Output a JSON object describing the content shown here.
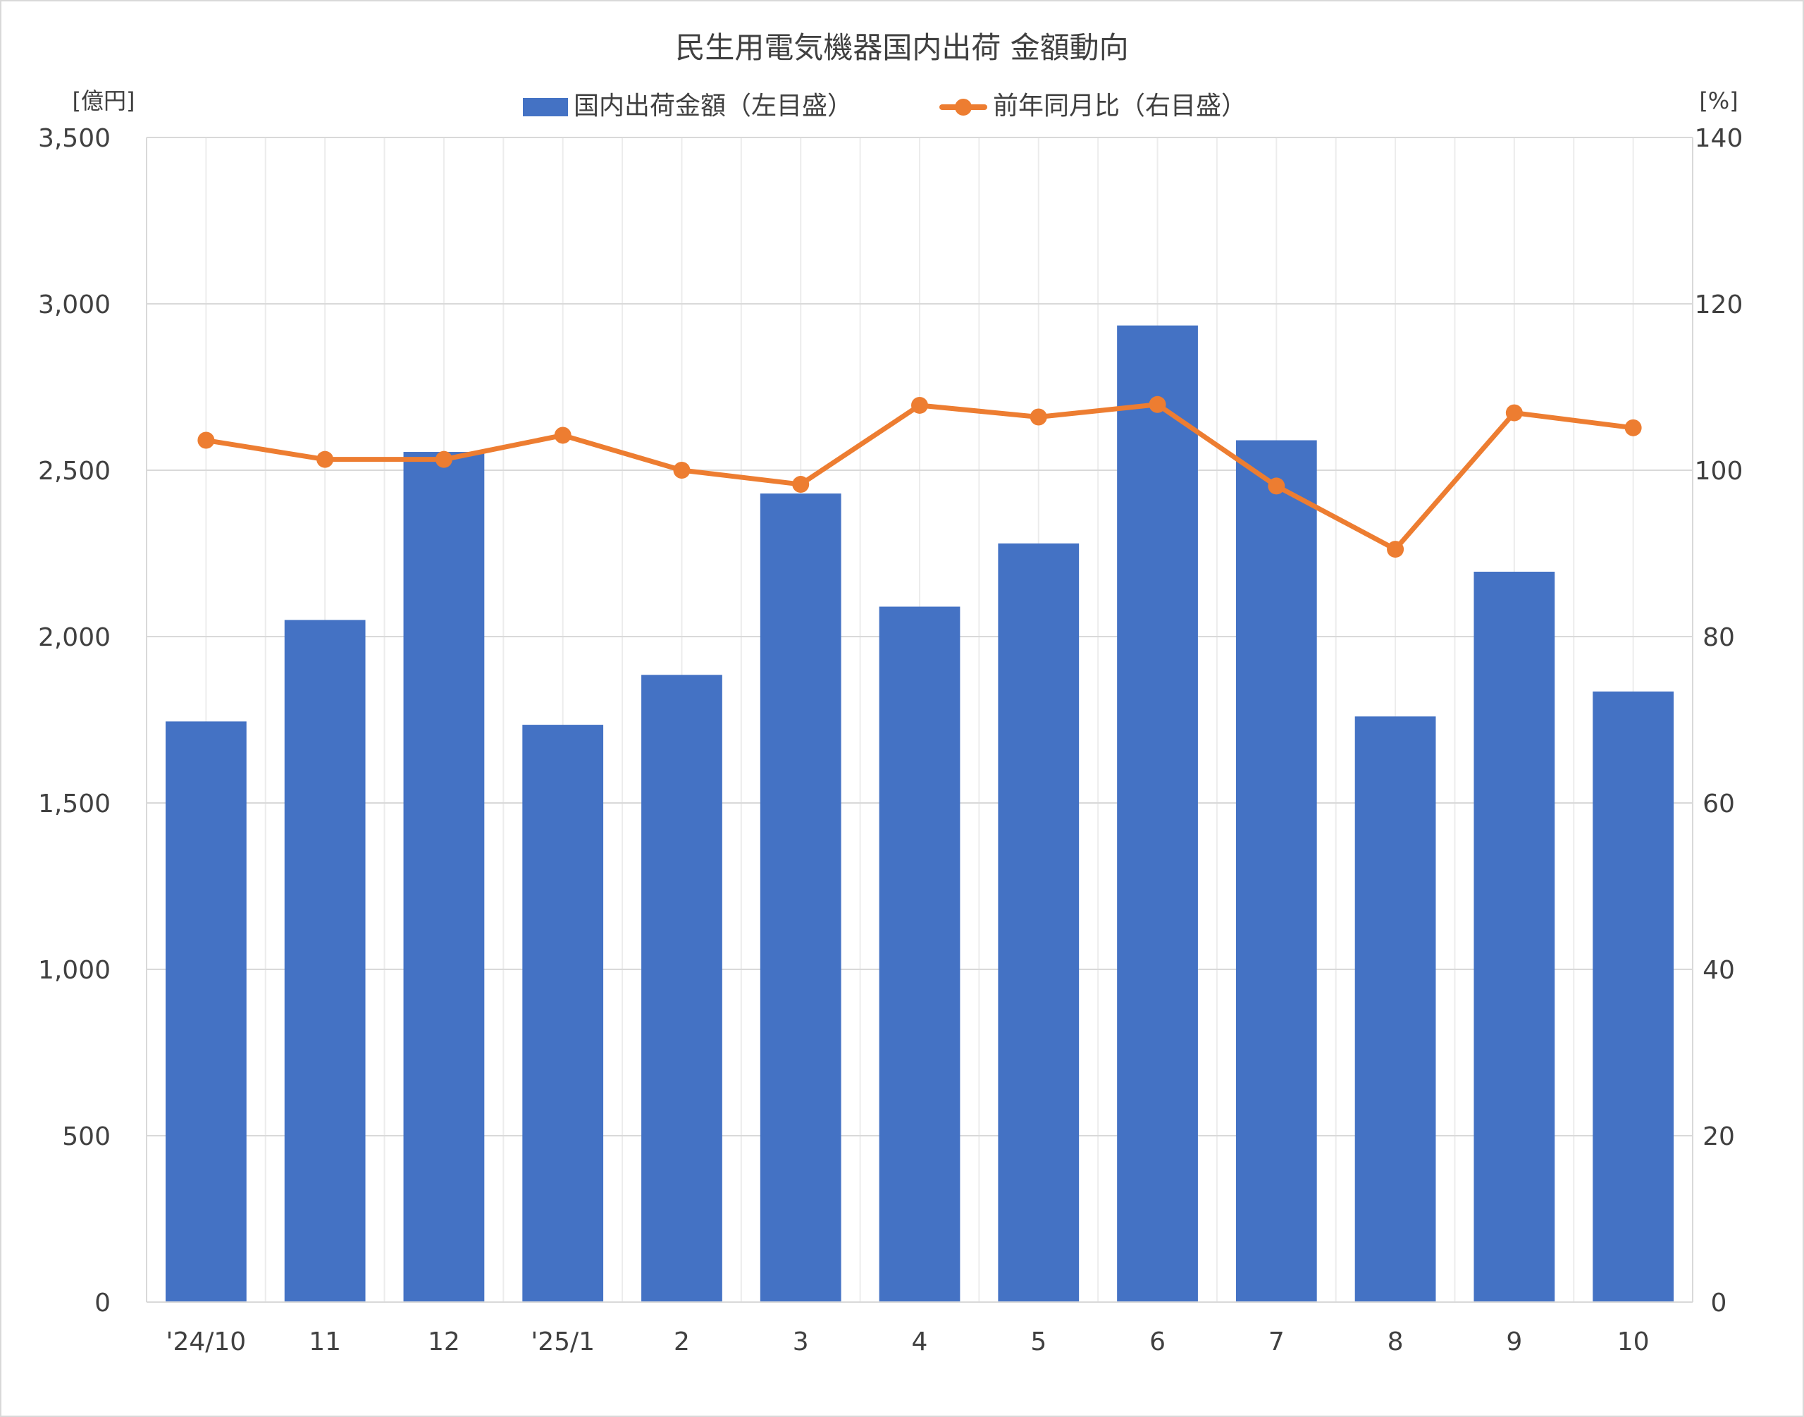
{
  "chart_data": {
    "type": "bar",
    "title": "民生用電気機器国内出荷 金額動向",
    "y_left_unit": "[億円]",
    "y_right_unit": "[%]",
    "categories": [
      "'24/10",
      "11",
      "12",
      "'25/1",
      "2",
      "3",
      "4",
      "5",
      "6",
      "7",
      "8",
      "9",
      "10"
    ],
    "y_left_ticks": [
      "0",
      "500",
      "1,000",
      "1,500",
      "2,000",
      "2,500",
      "3,000",
      "3,500"
    ],
    "y_right_ticks": [
      "0",
      "20",
      "40",
      "60",
      "80",
      "100",
      "120",
      "140"
    ],
    "ylim_left": [
      0,
      3500
    ],
    "ylim_right": [
      0,
      140
    ],
    "grid": true,
    "legend_position": "top",
    "series": [
      {
        "name": "国内出荷金額（左目盛）",
        "type": "bar",
        "axis": "left",
        "color": "#4472C4",
        "values": [
          1745,
          2050,
          2555,
          1735,
          1885,
          2430,
          2090,
          2280,
          2935,
          2590,
          1760,
          2195,
          1835
        ]
      },
      {
        "name": "前年同月比（右目盛）",
        "type": "line",
        "axis": "right",
        "color": "#ED7D31",
        "values": [
          103.6,
          101.3,
          101.3,
          104.2,
          100.0,
          98.3,
          107.8,
          106.4,
          107.9,
          98.1,
          90.5,
          106.9,
          105.1
        ]
      }
    ]
  }
}
